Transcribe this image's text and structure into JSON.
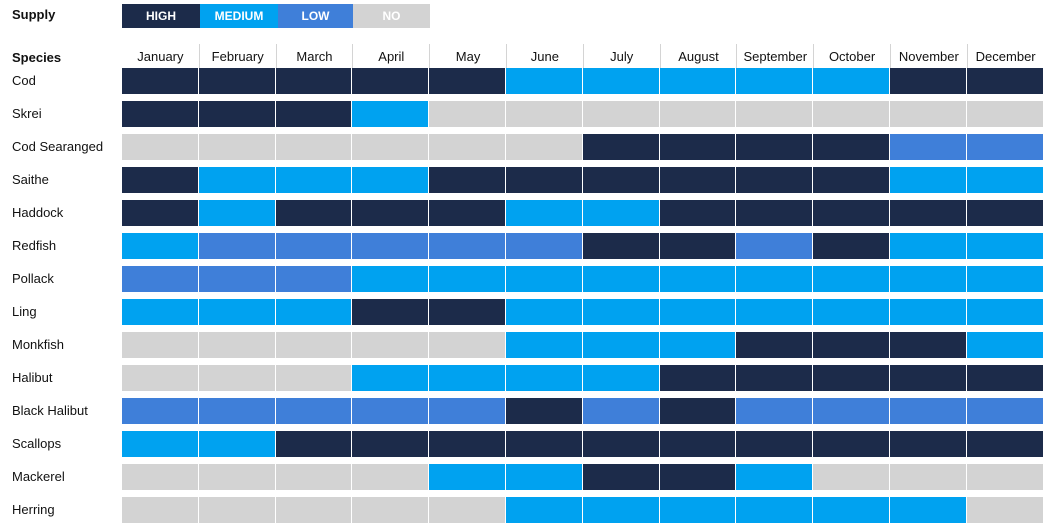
{
  "supply_label": "Supply",
  "species_header": "Species",
  "legend": [
    {
      "key": "high",
      "label": "HIGH",
      "color": "#1c2b4a"
    },
    {
      "key": "medium",
      "label": "MEDIUM",
      "color": "#00a2f0"
    },
    {
      "key": "low",
      "label": "LOW",
      "color": "#3f7fd9"
    },
    {
      "key": "no",
      "label": "NO",
      "color": "#d3d3d3"
    }
  ],
  "chart_data": {
    "type": "heatmap",
    "columns": [
      "January",
      "February",
      "March",
      "April",
      "May",
      "June",
      "July",
      "August",
      "September",
      "October",
      "November",
      "December"
    ],
    "rows": [
      {
        "species": "Cod",
        "supply": [
          "high",
          "high",
          "high",
          "high",
          "high",
          "medium",
          "medium",
          "medium",
          "medium",
          "medium",
          "high",
          "high"
        ]
      },
      {
        "species": "Skrei",
        "supply": [
          "high",
          "high",
          "high",
          "medium",
          "no",
          "no",
          "no",
          "no",
          "no",
          "no",
          "no",
          "no"
        ]
      },
      {
        "species": "Cod Searanged",
        "supply": [
          "no",
          "no",
          "no",
          "no",
          "no",
          "no",
          "high",
          "high",
          "high",
          "high",
          "low",
          "low"
        ]
      },
      {
        "species": "Saithe",
        "supply": [
          "high",
          "medium",
          "medium",
          "medium",
          "high",
          "high",
          "high",
          "high",
          "high",
          "high",
          "medium",
          "medium"
        ]
      },
      {
        "species": "Haddock",
        "supply": [
          "high",
          "medium",
          "high",
          "high",
          "high",
          "medium",
          "medium",
          "high",
          "high",
          "high",
          "high",
          "high"
        ]
      },
      {
        "species": "Redfish",
        "supply": [
          "medium",
          "low",
          "low",
          "low",
          "low",
          "low",
          "high",
          "high",
          "low",
          "high",
          "medium",
          "medium"
        ]
      },
      {
        "species": "Pollack",
        "supply": [
          "low",
          "low",
          "low",
          "medium",
          "medium",
          "medium",
          "medium",
          "medium",
          "medium",
          "medium",
          "medium",
          "medium"
        ]
      },
      {
        "species": "Ling",
        "supply": [
          "medium",
          "medium",
          "medium",
          "high",
          "high",
          "medium",
          "medium",
          "medium",
          "medium",
          "medium",
          "medium",
          "medium"
        ]
      },
      {
        "species": "Monkfish",
        "supply": [
          "no",
          "no",
          "no",
          "no",
          "no",
          "medium",
          "medium",
          "medium",
          "high",
          "high",
          "high",
          "medium"
        ]
      },
      {
        "species": "Halibut",
        "supply": [
          "no",
          "no",
          "no",
          "medium",
          "medium",
          "medium",
          "medium",
          "high",
          "high",
          "high",
          "high",
          "high"
        ]
      },
      {
        "species": "Black Halibut",
        "supply": [
          "low",
          "low",
          "low",
          "low",
          "low",
          "high",
          "low",
          "high",
          "low",
          "low",
          "low",
          "low"
        ]
      },
      {
        "species": "Scallops",
        "supply": [
          "medium",
          "medium",
          "high",
          "high",
          "high",
          "high",
          "high",
          "high",
          "high",
          "high",
          "high",
          "high"
        ]
      },
      {
        "species": "Mackerel",
        "supply": [
          "no",
          "no",
          "no",
          "no",
          "medium",
          "medium",
          "high",
          "high",
          "medium",
          "no",
          "no",
          "no"
        ]
      },
      {
        "species": "Herring",
        "supply": [
          "no",
          "no",
          "no",
          "no",
          "no",
          "medium",
          "medium",
          "medium",
          "medium",
          "medium",
          "medium",
          "no"
        ]
      }
    ]
  }
}
